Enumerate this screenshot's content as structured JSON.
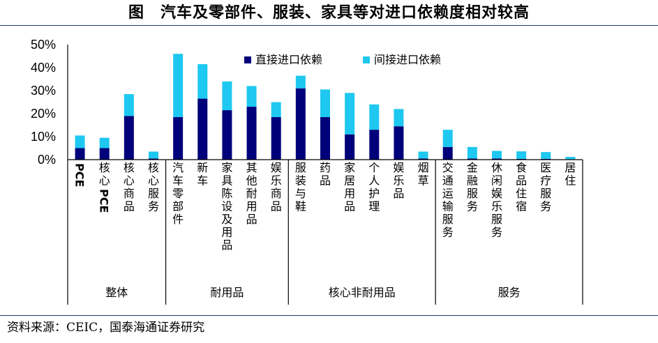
{
  "figure": {
    "title": "图　汽车及零部件、服装、家具等对进口依赖度相对较高",
    "source": "资料来源：CEIC，国泰海通证券研究"
  },
  "chart_data": {
    "type": "bar",
    "stacked": true,
    "ylim": [
      0,
      50
    ],
    "ytick_labels": [
      "0%",
      "10%",
      "20%",
      "30%",
      "40%",
      "50%"
    ],
    "categories": [
      "PCE",
      "核心PCE",
      "核心商品",
      "核心服务",
      "汽车零部件",
      "新车",
      "家具陈设及用品",
      "其他耐用品",
      "娱乐商品",
      "服装与鞋",
      "药品",
      "家居用品",
      "个人护理",
      "娱乐品",
      "烟草",
      "交通运输服务",
      "金融服务",
      "休闲娱乐服务",
      "食品住宿",
      "医疗服务",
      "居住"
    ],
    "series": [
      {
        "name": "直接进口依赖",
        "color": "#00007a",
        "values": [
          5,
          5,
          19,
          0.5,
          18.5,
          26.5,
          21.5,
          23,
          18.5,
          31,
          18.5,
          11,
          13,
          14.5,
          0.5,
          5.5,
          0.5,
          0.5,
          0.3,
          0.3,
          0.2
        ]
      },
      {
        "name": "间接进口依赖",
        "color": "#1ec8f0",
        "values": [
          5.5,
          4.5,
          9.5,
          3,
          27.5,
          15,
          12.5,
          9,
          6.5,
          5.5,
          12,
          18,
          11,
          7.5,
          3,
          7.5,
          5,
          3.3,
          3.3,
          3,
          1
        ]
      }
    ],
    "groups": [
      {
        "label": "整体",
        "span": [
          0,
          3
        ]
      },
      {
        "label": "耐用品",
        "span": [
          4,
          8
        ]
      },
      {
        "label": "核心非耐用品",
        "span": [
          9,
          14
        ]
      },
      {
        "label": "服务",
        "span": [
          15,
          20
        ]
      }
    ],
    "legend_position": "top"
  }
}
